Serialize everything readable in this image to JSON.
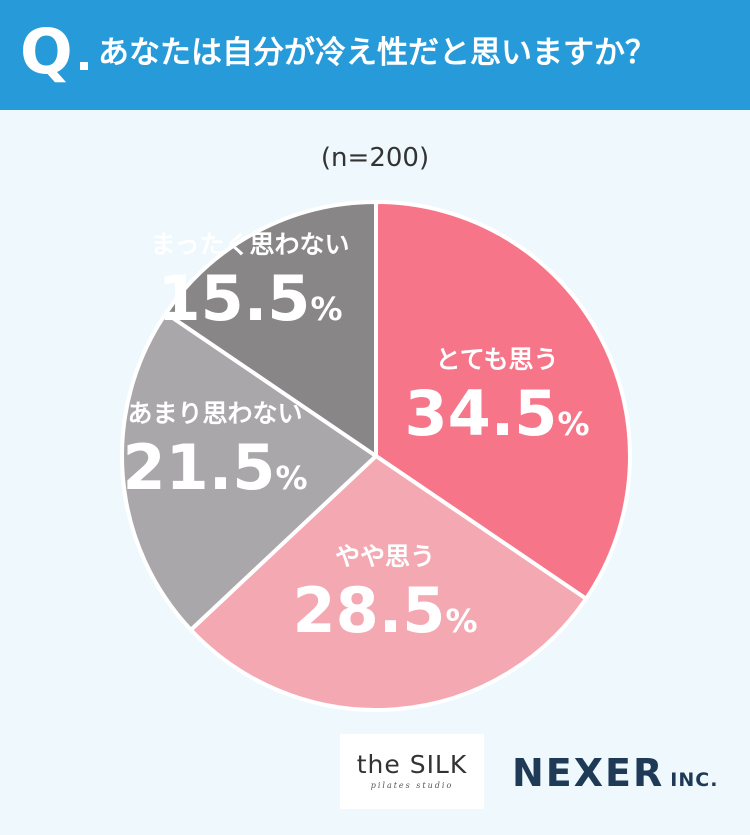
{
  "header": {
    "q_mark": "Q",
    "question": "あなたは自分が冷え性だと思いますか？"
  },
  "sample": "(n=200)",
  "chart_data": {
    "type": "pie",
    "title": "あなたは自分が冷え性だと思いますか？",
    "start": "12 o'clock, clockwise",
    "slices": [
      {
        "label": "とても思う",
        "value": 34.5,
        "display": "34.5",
        "unit": "%",
        "color": "#f67589"
      },
      {
        "label": "やや思う",
        "value": 28.5,
        "display": "28.5",
        "unit": "%",
        "color": "#f4a8b2"
      },
      {
        "label": "あまり思わない",
        "value": 21.5,
        "display": "21.5",
        "unit": "%",
        "color": "#a9a7a9"
      },
      {
        "label": "まったく思わない",
        "value": 15.5,
        "display": "15.5",
        "unit": "%",
        "color": "#888686"
      }
    ]
  },
  "logos": {
    "silk_main": "the SILK",
    "silk_sub": "pilates studio",
    "nexer_main": "NEXER",
    "nexer_suffix": "INC."
  },
  "colors": {
    "header_bg": "#279bd9",
    "page_bg": "#eef8fd",
    "nexer": "#1f3a56"
  }
}
